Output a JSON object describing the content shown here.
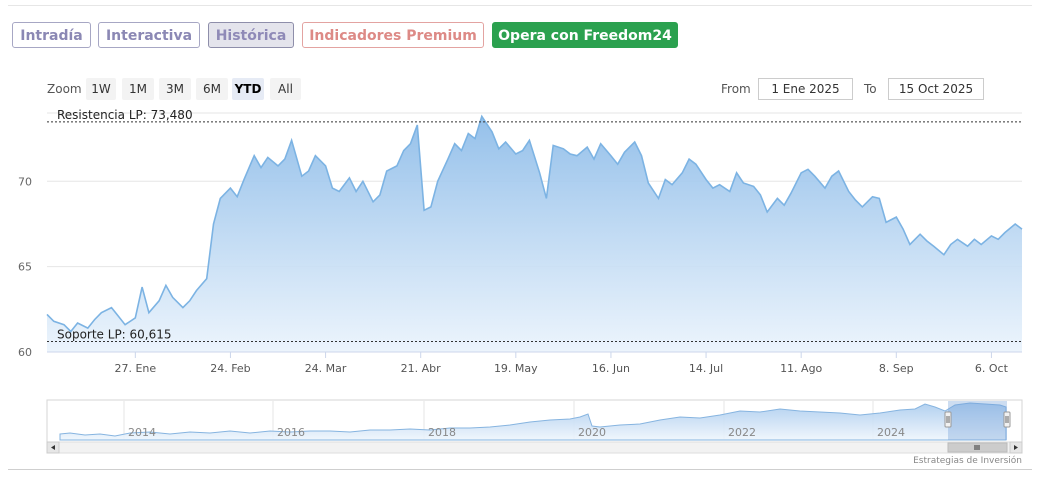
{
  "tabs": [
    {
      "label": "Intradía",
      "style": "normal"
    },
    {
      "label": "Interactiva",
      "style": "normal"
    },
    {
      "label": "Histórica",
      "style": "active"
    },
    {
      "label": "Indicadores Premium",
      "style": "premium"
    },
    {
      "label": "Opera con Freedom24",
      "style": "cta"
    }
  ],
  "zoom": {
    "label": "Zoom",
    "buttons": [
      "1W",
      "1M",
      "3M",
      "6M",
      "YTD",
      "All"
    ],
    "selected": "YTD"
  },
  "range": {
    "from_label": "From",
    "from_value": "1 Ene 2025",
    "to_label": "To",
    "to_value": "15 Oct 2025"
  },
  "credit": "Estrategias de Inversión",
  "colors": {
    "series_line": "#7cb3e3",
    "area_top": "#8fbde9",
    "area_bottom": "#eaf3fc",
    "cta": "#2ba14f",
    "premium": "#dd8a86",
    "tab_text": "#8b88b4"
  },
  "chart_data": {
    "type": "area",
    "x_start": "2025-01-01",
    "x_end": "2025-10-15",
    "ylim": [
      60,
      74
    ],
    "y_ticks": [
      60,
      65,
      70
    ],
    "grid": true,
    "x_ticks": [
      {
        "label": "27. Ene",
        "date": "2025-01-27"
      },
      {
        "label": "24. Feb",
        "date": "2025-02-24"
      },
      {
        "label": "24. Mar",
        "date": "2025-03-24"
      },
      {
        "label": "21. Abr",
        "date": "2025-04-21"
      },
      {
        "label": "19. May",
        "date": "2025-05-19"
      },
      {
        "label": "16. Jun",
        "date": "2025-06-16"
      },
      {
        "label": "14. Jul",
        "date": "2025-07-14"
      },
      {
        "label": "11. Ago",
        "date": "2025-08-11"
      },
      {
        "label": "8. Sep",
        "date": "2025-09-08"
      },
      {
        "label": "6. Oct",
        "date": "2025-10-06"
      }
    ],
    "reference_lines": [
      {
        "label": "Resistencia LP: 73,480",
        "value": 73.48
      },
      {
        "label": "Soporte LP: 60,615",
        "value": 60.615
      }
    ],
    "series": [
      {
        "points": [
          [
            "2025-01-01",
            62.2
          ],
          [
            "2025-01-03",
            61.8
          ],
          [
            "2025-01-06",
            61.6
          ],
          [
            "2025-01-08",
            61.2
          ],
          [
            "2025-01-10",
            61.7
          ],
          [
            "2025-01-13",
            61.4
          ],
          [
            "2025-01-15",
            61.9
          ],
          [
            "2025-01-17",
            62.3
          ],
          [
            "2025-01-20",
            62.6
          ],
          [
            "2025-01-22",
            62.1
          ],
          [
            "2025-01-24",
            61.6
          ],
          [
            "2025-01-27",
            62.0
          ],
          [
            "2025-01-29",
            63.8
          ],
          [
            "2025-01-31",
            62.3
          ],
          [
            "2025-02-03",
            63.0
          ],
          [
            "2025-02-05",
            63.9
          ],
          [
            "2025-02-07",
            63.2
          ],
          [
            "2025-02-10",
            62.6
          ],
          [
            "2025-02-12",
            63.0
          ],
          [
            "2025-02-14",
            63.6
          ],
          [
            "2025-02-17",
            64.3
          ],
          [
            "2025-02-19",
            67.5
          ],
          [
            "2025-02-21",
            69.0
          ],
          [
            "2025-02-24",
            69.6
          ],
          [
            "2025-02-26",
            69.1
          ],
          [
            "2025-02-28",
            70.1
          ],
          [
            "2025-03-03",
            71.5
          ],
          [
            "2025-03-05",
            70.8
          ],
          [
            "2025-03-07",
            71.4
          ],
          [
            "2025-03-10",
            70.9
          ],
          [
            "2025-03-12",
            71.3
          ],
          [
            "2025-03-14",
            72.4
          ],
          [
            "2025-03-17",
            70.3
          ],
          [
            "2025-03-19",
            70.6
          ],
          [
            "2025-03-21",
            71.5
          ],
          [
            "2025-03-24",
            70.9
          ],
          [
            "2025-03-26",
            69.6
          ],
          [
            "2025-03-28",
            69.4
          ],
          [
            "2025-03-31",
            70.2
          ],
          [
            "2025-04-02",
            69.4
          ],
          [
            "2025-04-04",
            70.0
          ],
          [
            "2025-04-07",
            68.8
          ],
          [
            "2025-04-09",
            69.2
          ],
          [
            "2025-04-11",
            70.6
          ],
          [
            "2025-04-14",
            70.9
          ],
          [
            "2025-04-16",
            71.8
          ],
          [
            "2025-04-18",
            72.2
          ],
          [
            "2025-04-20",
            73.3
          ],
          [
            "2025-04-22",
            68.3
          ],
          [
            "2025-04-24",
            68.5
          ],
          [
            "2025-04-26",
            70.0
          ],
          [
            "2025-04-29",
            71.3
          ],
          [
            "2025-05-01",
            72.2
          ],
          [
            "2025-05-03",
            71.8
          ],
          [
            "2025-05-05",
            72.8
          ],
          [
            "2025-05-07",
            72.5
          ],
          [
            "2025-05-09",
            73.8
          ],
          [
            "2025-05-12",
            72.9
          ],
          [
            "2025-05-14",
            71.9
          ],
          [
            "2025-05-16",
            72.3
          ],
          [
            "2025-05-19",
            71.6
          ],
          [
            "2025-05-21",
            71.8
          ],
          [
            "2025-05-23",
            72.4
          ],
          [
            "2025-05-26",
            70.5
          ],
          [
            "2025-05-28",
            69.0
          ],
          [
            "2025-05-30",
            72.1
          ],
          [
            "2025-06-02",
            71.9
          ],
          [
            "2025-06-04",
            71.6
          ],
          [
            "2025-06-06",
            71.5
          ],
          [
            "2025-06-09",
            72.0
          ],
          [
            "2025-06-11",
            71.3
          ],
          [
            "2025-06-13",
            72.2
          ],
          [
            "2025-06-16",
            71.5
          ],
          [
            "2025-06-18",
            71.0
          ],
          [
            "2025-06-20",
            71.7
          ],
          [
            "2025-06-23",
            72.3
          ],
          [
            "2025-06-25",
            71.5
          ],
          [
            "2025-06-27",
            69.9
          ],
          [
            "2025-06-30",
            69.0
          ],
          [
            "2025-07-02",
            70.1
          ],
          [
            "2025-07-04",
            69.8
          ],
          [
            "2025-07-07",
            70.5
          ],
          [
            "2025-07-09",
            71.3
          ],
          [
            "2025-07-11",
            71.0
          ],
          [
            "2025-07-14",
            70.1
          ],
          [
            "2025-07-16",
            69.6
          ],
          [
            "2025-07-18",
            69.8
          ],
          [
            "2025-07-21",
            69.4
          ],
          [
            "2025-07-23",
            70.5
          ],
          [
            "2025-07-25",
            69.9
          ],
          [
            "2025-07-28",
            69.7
          ],
          [
            "2025-07-30",
            69.2
          ],
          [
            "2025-08-01",
            68.2
          ],
          [
            "2025-08-04",
            69.0
          ],
          [
            "2025-08-06",
            68.6
          ],
          [
            "2025-08-08",
            69.3
          ],
          [
            "2025-08-11",
            70.5
          ],
          [
            "2025-08-13",
            70.7
          ],
          [
            "2025-08-15",
            70.3
          ],
          [
            "2025-08-18",
            69.6
          ],
          [
            "2025-08-20",
            70.3
          ],
          [
            "2025-08-22",
            70.6
          ],
          [
            "2025-08-25",
            69.4
          ],
          [
            "2025-08-27",
            68.9
          ],
          [
            "2025-08-29",
            68.5
          ],
          [
            "2025-09-01",
            69.1
          ],
          [
            "2025-09-03",
            69.0
          ],
          [
            "2025-09-05",
            67.6
          ],
          [
            "2025-09-08",
            67.9
          ],
          [
            "2025-09-10",
            67.2
          ],
          [
            "2025-09-12",
            66.3
          ],
          [
            "2025-09-15",
            66.9
          ],
          [
            "2025-09-17",
            66.5
          ],
          [
            "2025-09-19",
            66.2
          ],
          [
            "2025-09-22",
            65.7
          ],
          [
            "2025-09-24",
            66.3
          ],
          [
            "2025-09-26",
            66.6
          ],
          [
            "2025-09-29",
            66.2
          ],
          [
            "2025-10-01",
            66.6
          ],
          [
            "2025-10-03",
            66.3
          ],
          [
            "2025-10-06",
            66.8
          ],
          [
            "2025-10-08",
            66.6
          ],
          [
            "2025-10-10",
            67.0
          ],
          [
            "2025-10-13",
            67.5
          ],
          [
            "2025-10-15",
            67.2
          ]
        ]
      }
    ],
    "navigator": {
      "x_labels": [
        "2014",
        "2016",
        "2018",
        "2020",
        "2022",
        "2024"
      ],
      "selection": "2025"
    }
  }
}
